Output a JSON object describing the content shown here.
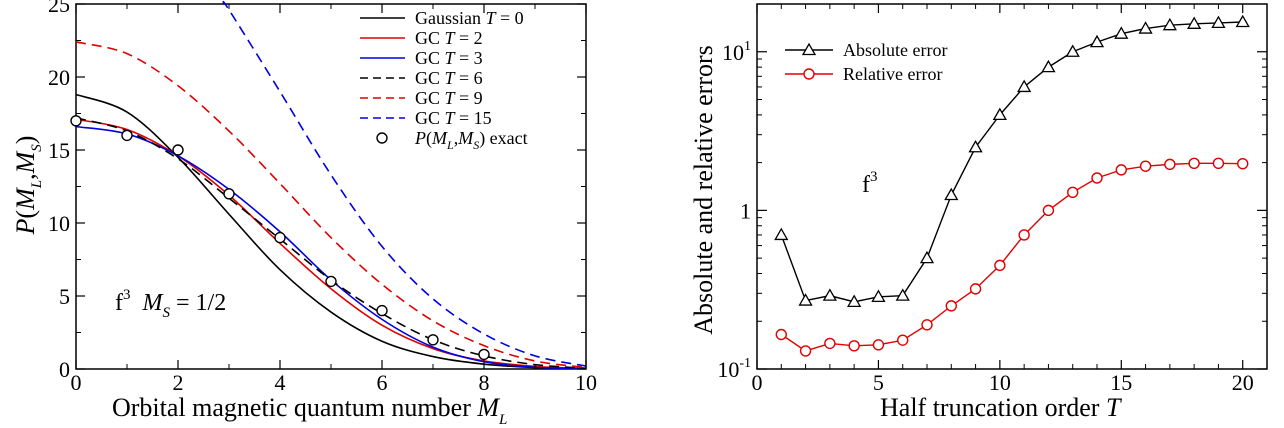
{
  "chart_data": [
    {
      "type": "line",
      "xlabel": "Orbital magnetic quantum number M_L",
      "ylabel": "P(M_L,M_S)",
      "xlim": [
        0,
        10
      ],
      "ylim": [
        0,
        25
      ],
      "xticks": [
        "0",
        "2",
        "4",
        "6",
        "8",
        "10"
      ],
      "yticks": [
        "0",
        "5",
        "10",
        "15",
        "20",
        "25"
      ],
      "annotation": "f3  M_S = 1/2",
      "legend_position": "top-right",
      "series": [
        {
          "name": "Gaussian T = 0",
          "color": "#000000",
          "dash": "solid",
          "x": [
            0,
            1,
            2,
            3,
            4,
            5,
            6,
            7,
            8,
            9,
            10
          ],
          "y": [
            18.8,
            17.6,
            14.5,
            10.6,
            6.8,
            3.9,
            1.9,
            0.85,
            0.33,
            0.1,
            0.02
          ]
        },
        {
          "name": "GC T = 2",
          "color": "#e00000",
          "dash": "solid",
          "x": [
            0,
            1,
            2,
            3,
            4,
            5,
            6,
            7,
            8,
            9,
            10
          ],
          "y": [
            17.1,
            16.4,
            14.6,
            11.9,
            8.6,
            5.5,
            3.0,
            1.4,
            0.55,
            0.18,
            0.03
          ]
        },
        {
          "name": "GC T = 3",
          "color": "#0000e0",
          "dash": "solid",
          "x": [
            0,
            1,
            2,
            3,
            4,
            5,
            6,
            7,
            8,
            9,
            10
          ],
          "y": [
            16.6,
            16.1,
            14.6,
            12.3,
            9.4,
            6.1,
            3.4,
            1.5,
            0.5,
            0.12,
            0.02
          ]
        },
        {
          "name": "GC T = 6",
          "color": "#000000",
          "dash": "dashed",
          "x": [
            0,
            1,
            2,
            3,
            4,
            5,
            6,
            7,
            8,
            9,
            10
          ],
          "y": [
            17.2,
            16.3,
            14.4,
            11.7,
            8.9,
            6.1,
            3.8,
            2.0,
            0.9,
            0.3,
            0.05
          ]
        },
        {
          "name": "GC T = 9",
          "color": "#e00000",
          "dash": "dashed",
          "x": [
            0,
            1,
            2,
            3,
            4,
            5,
            6,
            7,
            8,
            9,
            10
          ],
          "y": [
            22.4,
            21.6,
            19.4,
            16.3,
            12.7,
            9.0,
            5.8,
            3.3,
            1.6,
            0.55,
            0.1
          ]
        },
        {
          "name": "GC T = 15",
          "color": "#0000e0",
          "dash": "dashed",
          "x": [
            2.9,
            3,
            4,
            5,
            6,
            7,
            8,
            9,
            10
          ],
          "y": [
            25,
            24.6,
            19.0,
            13.3,
            8.4,
            4.8,
            2.4,
            0.9,
            0.2
          ]
        },
        {
          "name": "P(M_L,M_S) exact",
          "color": "#000000",
          "marker": "circle",
          "x": [
            0,
            1,
            2,
            3,
            4,
            5,
            6,
            7,
            8
          ],
          "y": [
            17,
            16,
            15,
            12,
            9,
            6,
            4,
            2,
            1
          ]
        }
      ]
    },
    {
      "type": "line",
      "xlabel": "Half truncation order T",
      "ylabel": "Absolute and relative errors",
      "yscale": "log",
      "xlim": [
        0,
        21
      ],
      "ylim": [
        0.1,
        20
      ],
      "xticks": [
        "0",
        "5",
        "10",
        "15",
        "20"
      ],
      "yticks": [
        "10-1",
        "1",
        "101"
      ],
      "annotation": "f3",
      "legend_position": "top-left",
      "series": [
        {
          "name": "Absolute error",
          "color": "#000000",
          "marker": "triangle",
          "x": [
            1,
            2,
            3,
            4,
            5,
            6,
            7,
            8,
            9,
            10,
            11,
            12,
            13,
            14,
            15,
            16,
            17,
            18,
            19,
            20
          ],
          "y": [
            0.7,
            0.27,
            0.29,
            0.265,
            0.285,
            0.29,
            0.5,
            1.25,
            2.5,
            4.0,
            6.0,
            8.0,
            10.0,
            11.5,
            13.0,
            14.0,
            14.7,
            15.0,
            15.2,
            15.4
          ]
        },
        {
          "name": "Relative error",
          "color": "#e00000",
          "marker": "circle",
          "x": [
            1,
            2,
            3,
            4,
            5,
            6,
            7,
            8,
            9,
            10,
            11,
            12,
            13,
            14,
            15,
            16,
            17,
            18,
            19,
            20
          ],
          "y": [
            0.165,
            0.13,
            0.145,
            0.14,
            0.142,
            0.152,
            0.19,
            0.25,
            0.32,
            0.45,
            0.7,
            1.0,
            1.3,
            1.6,
            1.8,
            1.9,
            1.95,
            1.98,
            1.98,
            1.97
          ]
        }
      ]
    }
  ]
}
